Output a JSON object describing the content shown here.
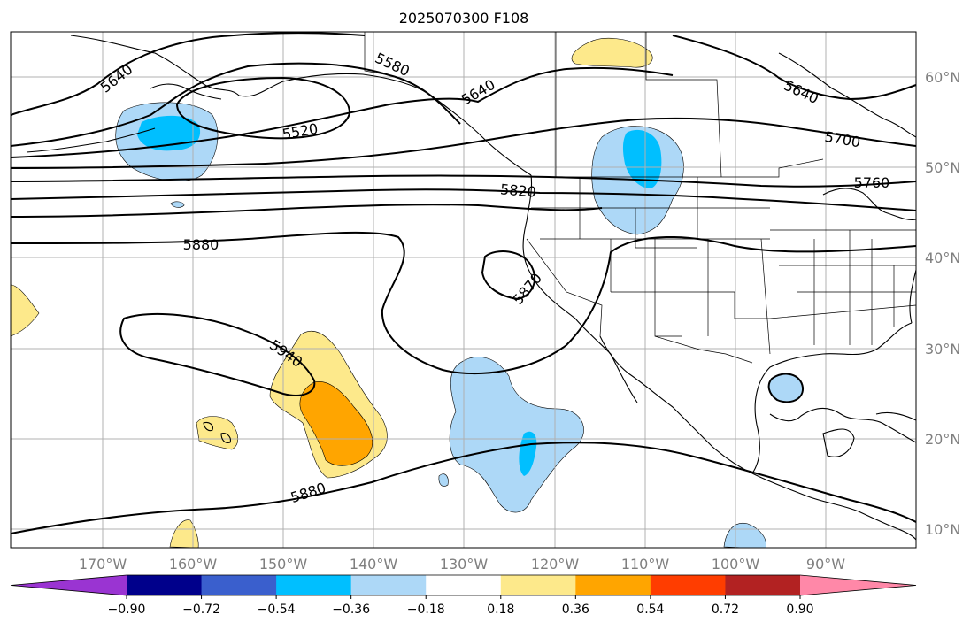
{
  "title": "2025070300 F108",
  "map": {
    "lon_labels": [
      "170°W",
      "160°W",
      "150°W",
      "140°W",
      "130°W",
      "120°W",
      "110°W",
      "100°W",
      "90°W"
    ],
    "lat_labels": [
      "60°N",
      "50°N",
      "40°N",
      "30°N",
      "20°N",
      "10°N"
    ]
  },
  "contour_labels": {
    "c5640_west": "5640",
    "c5580": "5580",
    "c5520": "5520",
    "c5640_mid": "5640",
    "c5640_east": "5640",
    "c5700": "5700",
    "c5760": "5760",
    "c5820": "5820",
    "c5880_north": "5880",
    "c5870": "5870",
    "c5940": "5940",
    "c5880_south": "5880"
  },
  "colorbar": {
    "colors": [
      "#9a34d2",
      "#00008b",
      "#3a5fcd",
      "#00bfff",
      "#add8f7",
      "#ffffff",
      "#fde98b",
      "#ffa500",
      "#ff3d00",
      "#b22222",
      "#ff88a8"
    ],
    "ticks": [
      "−0.90",
      "−0.72",
      "−0.54",
      "−0.36",
      "−0.18",
      "0.18",
      "0.36",
      "0.54",
      "0.72",
      "0.90"
    ]
  }
}
